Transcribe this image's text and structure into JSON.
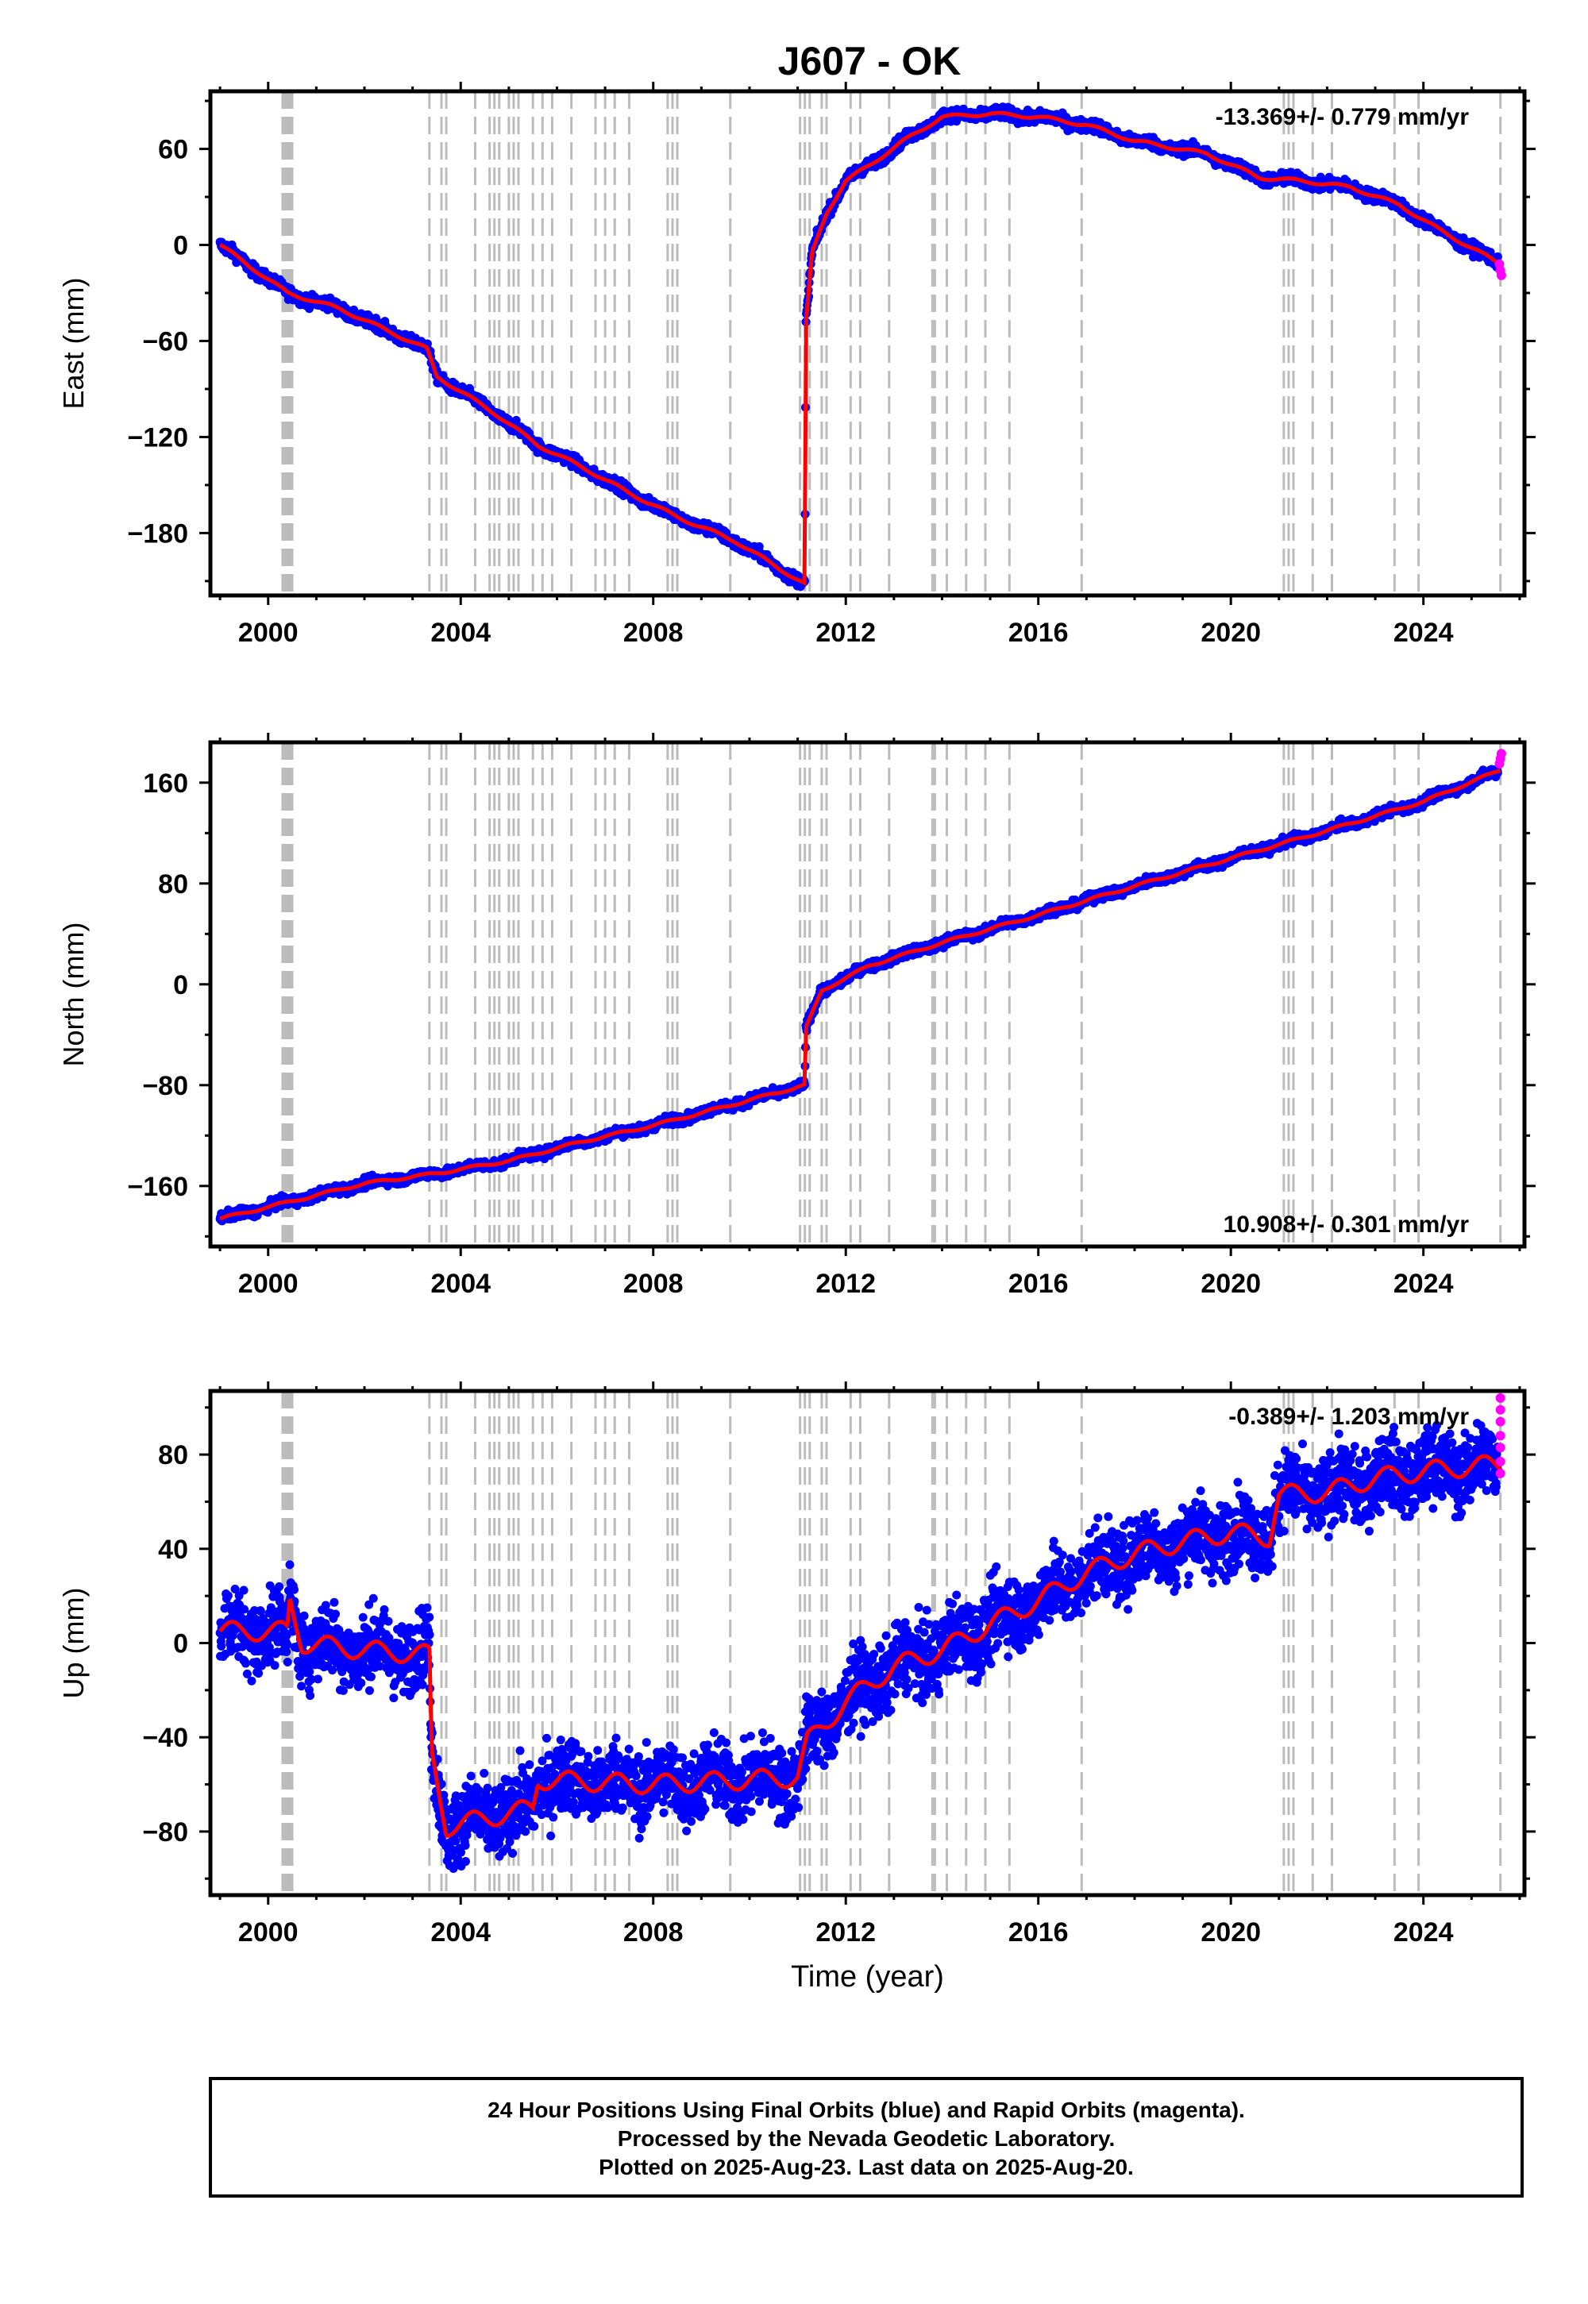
{
  "title": "J607 - OK",
  "footer": {
    "line1": "24 Hour Positions Using Final Orbits (blue) and Rapid Orbits (magenta).",
    "line2": "Processed by the Nevada Geodetic Laboratory.",
    "line3": "Plotted on 2025-Aug-23. Last data on 2025-Aug-20."
  },
  "colors": {
    "final_orbits": "#0000ff",
    "rapid_orbits": "#ff00ff",
    "model": "#ff0000",
    "event_lines": "#bbbbbb"
  },
  "chart_data": [
    {
      "type": "scatter",
      "component": "east",
      "ylabel": "East (mm)",
      "xlabel": "",
      "rate_label": "-13.369+/- 0.779 mm/yr",
      "rate_position": "top-right",
      "xlim": [
        1998.8,
        2026.1
      ],
      "ylim": [
        -219,
        96
      ],
      "xticks": [
        2000,
        2004,
        2008,
        2012,
        2016,
        2020,
        2024
      ],
      "yticks": [
        60,
        0,
        -60,
        -120,
        -180
      ],
      "grid": false,
      "trend": [
        {
          "x": 1999.0,
          "y": 0
        },
        {
          "x": 2000.4,
          "y": -30
        },
        {
          "x": 2001.5,
          "y": -40
        },
        {
          "x": 2003.3,
          "y": -65
        },
        {
          "x": 2003.5,
          "y": -82
        },
        {
          "x": 2004.7,
          "y": -105
        },
        {
          "x": 2005.6,
          "y": -125
        },
        {
          "x": 2006.6,
          "y": -140
        },
        {
          "x": 2007.5,
          "y": -155
        },
        {
          "x": 2008.5,
          "y": -170
        },
        {
          "x": 2009.7,
          "y": -185
        },
        {
          "x": 2011.15,
          "y": -212
        },
        {
          "x": 2011.17,
          "y": -50
        },
        {
          "x": 2011.3,
          "y": -5
        },
        {
          "x": 2011.6,
          "y": 20
        },
        {
          "x": 2012.0,
          "y": 40
        },
        {
          "x": 2012.5,
          "y": 50
        },
        {
          "x": 2013.2,
          "y": 65
        },
        {
          "x": 2014.0,
          "y": 80
        },
        {
          "x": 2015.0,
          "y": 82
        },
        {
          "x": 2016.0,
          "y": 80
        },
        {
          "x": 2017.0,
          "y": 75
        },
        {
          "x": 2018.0,
          "y": 65
        },
        {
          "x": 2019.5,
          "y": 57
        },
        {
          "x": 2020.6,
          "y": 42
        },
        {
          "x": 2021.5,
          "y": 40
        },
        {
          "x": 2022.5,
          "y": 36
        },
        {
          "x": 2023.5,
          "y": 25
        },
        {
          "x": 2024.3,
          "y": 10
        },
        {
          "x": 2025.6,
          "y": -12
        }
      ],
      "rapid_points": [
        {
          "x": 2025.58,
          "y": -12
        },
        {
          "x": 2025.6,
          "y": -16
        },
        {
          "x": 2025.62,
          "y": -19
        }
      ]
    },
    {
      "type": "scatter",
      "component": "north",
      "ylabel": "North (mm)",
      "xlabel": "",
      "rate_label": "10.908+/- 0.301 mm/yr",
      "rate_position": "bottom-right",
      "xlim": [
        1998.8,
        2026.1
      ],
      "ylim": [
        -208,
        192
      ],
      "xticks": [
        2000,
        2004,
        2008,
        2012,
        2016,
        2020,
        2024
      ],
      "yticks": [
        160,
        80,
        0,
        -80,
        -160
      ],
      "grid": false,
      "trend": [
        {
          "x": 1999.0,
          "y": -186
        },
        {
          "x": 2000.5,
          "y": -172
        },
        {
          "x": 2002.0,
          "y": -158
        },
        {
          "x": 2003.5,
          "y": -150
        },
        {
          "x": 2005.0,
          "y": -140
        },
        {
          "x": 2006.5,
          "y": -125
        },
        {
          "x": 2008.0,
          "y": -112
        },
        {
          "x": 2009.5,
          "y": -97
        },
        {
          "x": 2011.15,
          "y": -80
        },
        {
          "x": 2011.17,
          "y": -35
        },
        {
          "x": 2011.5,
          "y": -5
        },
        {
          "x": 2012.5,
          "y": 15
        },
        {
          "x": 2014.0,
          "y": 33
        },
        {
          "x": 2016.0,
          "y": 55
        },
        {
          "x": 2018.0,
          "y": 78
        },
        {
          "x": 2020.0,
          "y": 100
        },
        {
          "x": 2022.0,
          "y": 122
        },
        {
          "x": 2024.0,
          "y": 145
        },
        {
          "x": 2025.6,
          "y": 170
        }
      ],
      "rapid_points": [
        {
          "x": 2025.58,
          "y": 175
        },
        {
          "x": 2025.6,
          "y": 179
        },
        {
          "x": 2025.62,
          "y": 183
        }
      ]
    },
    {
      "type": "scatter",
      "component": "up",
      "ylabel": "Up (mm)",
      "xlabel": "Time (year)",
      "rate_label": "-0.389+/- 1.203 mm/yr",
      "rate_position": "top-right",
      "xlim": [
        1998.8,
        2026.1
      ],
      "ylim": [
        -107,
        107
      ],
      "xticks": [
        2000,
        2004,
        2008,
        2012,
        2016,
        2020,
        2024
      ],
      "yticks": [
        80,
        40,
        0,
        -40,
        -80
      ],
      "grid": false,
      "trend": [
        {
          "x": 1999.0,
          "y": 5
        },
        {
          "x": 2000.4,
          "y": 5
        },
        {
          "x": 2000.45,
          "y": 18
        },
        {
          "x": 2000.7,
          "y": 0
        },
        {
          "x": 2002.0,
          "y": -3
        },
        {
          "x": 2003.35,
          "y": -5
        },
        {
          "x": 2003.4,
          "y": -48
        },
        {
          "x": 2003.7,
          "y": -78
        },
        {
          "x": 2005.5,
          "y": -70
        },
        {
          "x": 2005.6,
          "y": -58
        },
        {
          "x": 2008.0,
          "y": -60
        },
        {
          "x": 2011.0,
          "y": -57
        },
        {
          "x": 2011.2,
          "y": -42
        },
        {
          "x": 2012.0,
          "y": -25
        },
        {
          "x": 2013.0,
          "y": -10
        },
        {
          "x": 2014.0,
          "y": -3
        },
        {
          "x": 2015.0,
          "y": 8
        },
        {
          "x": 2016.0,
          "y": 18
        },
        {
          "x": 2017.0,
          "y": 30
        },
        {
          "x": 2018.0,
          "y": 38
        },
        {
          "x": 2019.0,
          "y": 43
        },
        {
          "x": 2020.0,
          "y": 47
        },
        {
          "x": 2020.8,
          "y": 45
        },
        {
          "x": 2021.0,
          "y": 63
        },
        {
          "x": 2022.0,
          "y": 64
        },
        {
          "x": 2023.0,
          "y": 70
        },
        {
          "x": 2024.0,
          "y": 73
        },
        {
          "x": 2025.6,
          "y": 76
        }
      ],
      "rapid_points": [
        {
          "x": 2025.6,
          "y": 72
        },
        {
          "x": 2025.6,
          "y": 77
        },
        {
          "x": 2025.6,
          "y": 83
        },
        {
          "x": 2025.6,
          "y": 88
        },
        {
          "x": 2025.6,
          "y": 94
        },
        {
          "x": 2025.6,
          "y": 99
        },
        {
          "x": 2025.6,
          "y": 104
        }
      ]
    }
  ],
  "event_lines": [
    2000.3,
    2000.35,
    2000.4,
    2000.45,
    2000.5,
    2003.35,
    2003.6,
    2003.7,
    2004.3,
    2004.6,
    2004.7,
    2004.8,
    2005.0,
    2005.1,
    2005.2,
    2005.5,
    2005.7,
    2005.9,
    2006.3,
    2006.8,
    2007.0,
    2007.2,
    2007.5,
    2008.3,
    2008.4,
    2008.5,
    2009.6,
    2011.05,
    2011.15,
    2011.25,
    2011.5,
    2011.6,
    2012.1,
    2012.3,
    2012.9,
    2013.8,
    2013.85,
    2014.1,
    2014.5,
    2014.9,
    2015.4,
    2016.9,
    2021.1,
    2021.2,
    2021.3,
    2021.7,
    2022.1,
    2023.4,
    2023.9,
    2025.6
  ]
}
